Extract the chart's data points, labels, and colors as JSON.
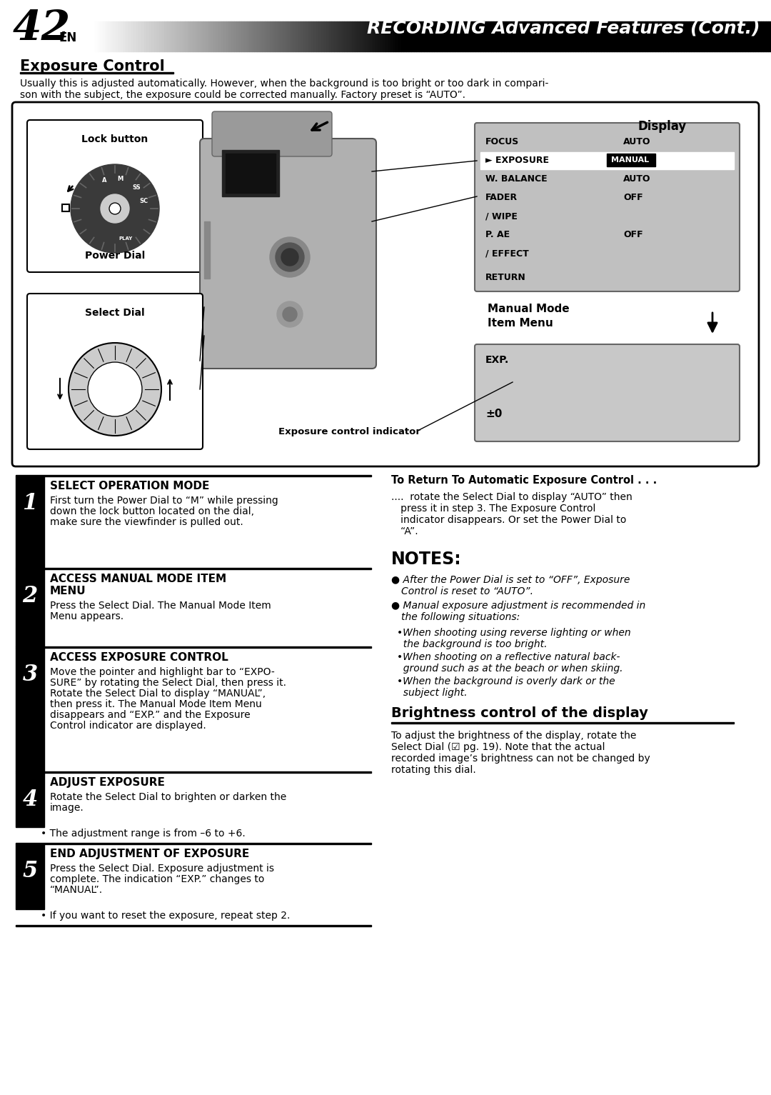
{
  "page_number": "42",
  "page_suffix": "EN",
  "header_title_italic": "RECORDING",
  "header_title_normal": " Advanced Features (Cont.)",
  "section_title": "Exposure Control",
  "intro_line1": "Usually this is adjusted automatically. However, when the background is too bright or too dark in compari-",
  "intro_line2": "son with the subject, the exposure could be corrected manually. Factory preset is “AUTO”.",
  "display_label": "Display",
  "lock_button_label": "Lock button",
  "power_dial_label": "Power Dial",
  "select_dial_label": "Select Dial",
  "exposure_indicator_label": "Exposure control indicator",
  "manual_mode_label1": "Manual Mode",
  "manual_mode_label2": "Item Menu",
  "menu_items": [
    [
      "FOCUS",
      "AUTO",
      false
    ],
    [
      "► EXPOSURE",
      "MANUAL",
      true
    ],
    [
      "W. BALANCE",
      "AUTO",
      false
    ],
    [
      "FADER",
      "OFF",
      false
    ],
    [
      "/ WIPE",
      "",
      false
    ],
    [
      "P. AE",
      "OFF",
      false
    ],
    [
      "/ EFFECT",
      "",
      false
    ]
  ],
  "return_label": "RETURN",
  "exp_label": "EXP.",
  "exp_value": "±0",
  "steps": [
    {
      "number": "1",
      "title": "SELECT OPERATION MODE",
      "lines": [
        "First turn the Power Dial to “M” while pressing",
        "down the lock button located on the dial,",
        "make sure the viewfinder is pulled out."
      ],
      "bullet": null
    },
    {
      "number": "2",
      "title": "ACCESS MANUAL MODE ITEM\nMENU",
      "lines": [
        "Press the Select Dial. The Manual Mode Item",
        "Menu appears."
      ],
      "bullet": null
    },
    {
      "number": "3",
      "title": "ACCESS EXPOSURE CONTROL",
      "lines": [
        "Move the pointer and highlight bar to “EXPO-",
        "SURE” by rotating the Select Dial, then press it.",
        "Rotate the Select Dial to display “MANUAL”,",
        "then press it. The Manual Mode Item Menu",
        "disappears and “EXP.” and the Exposure",
        "Control indicator are displayed."
      ],
      "bullet": null
    },
    {
      "number": "4",
      "title": "ADJUST EXPOSURE",
      "lines": [
        "Rotate the Select Dial to brighten or darken the",
        "image."
      ],
      "bullet": "• The adjustment range is from –6 to +6."
    },
    {
      "number": "5",
      "title": "END ADJUSTMENT OF EXPOSURE",
      "lines": [
        "Press the Select Dial. Exposure adjustment is",
        "complete. The indication “EXP.” changes to",
        "“MANUAL”."
      ],
      "bullet": "• If you want to reset the exposure, repeat step 2."
    }
  ],
  "return_section_title": "To Return To Automatic Exposure Control . . .",
  "return_section_lines": [
    "....  rotate the Select Dial to display “AUTO” then",
    "   press it in step 3. The Exposure Control",
    "   indicator disappears. Or set the Power Dial to",
    "   “A”."
  ],
  "notes_title": "NOTES:",
  "note1": "After the Power Dial is set to “OFF”, Exposure",
  "note1b": "Control is reset to “AUTO”.",
  "note2": "Manual exposure adjustment is recommended in",
  "note2b": "the following situations:",
  "subnote1a": "•When shooting using reverse lighting or when",
  "subnote1b": "  the background is too bright.",
  "subnote2a": "•When shooting on a reflective natural back-",
  "subnote2b": "  ground such as at the beach or when skiing.",
  "subnote3a": "•When the background is overly dark or the",
  "subnote3b": "  subject light.",
  "brightness_title": "Brightness control of the display",
  "brightness_lines": [
    "To adjust the brightness of the display, rotate the",
    "Select Dial (☑ pg. 19). Note that the actual",
    "recorded image’s brightness can not be changed by",
    "rotating this dial."
  ],
  "bg_color": "#ffffff",
  "menu_bg": "#c0c0c0",
  "exp_bg": "#c8c8c8",
  "header_text_color": "#ffffff",
  "step_bg": "#000000",
  "step_fg": "#ffffff",
  "diag_border": "#000000",
  "diag_fill": "#ffffff"
}
